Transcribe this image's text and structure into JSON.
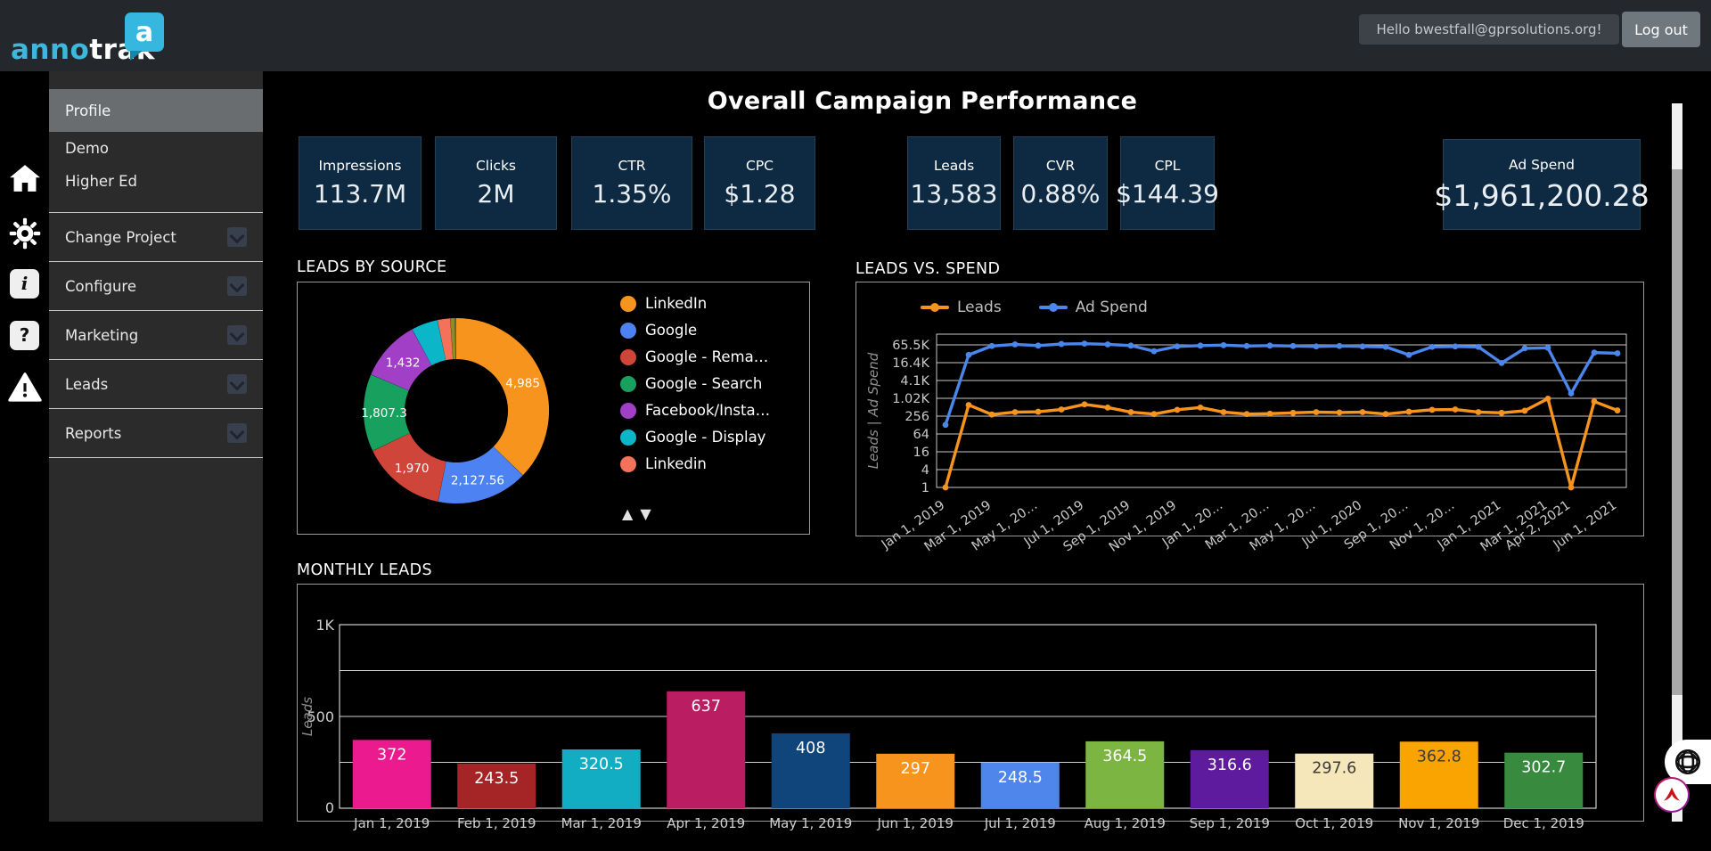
{
  "topbar": {
    "logo_anno": "anno",
    "logo_trak": "trak",
    "logo_badge": "a",
    "greeting": "Hello bwestfall@gprsolutions.org!",
    "logout_label": "Log out"
  },
  "sidebar": {
    "rail_icons": [
      "home",
      "gear",
      "info",
      "help",
      "warning"
    ],
    "items": [
      {
        "label": "Profile",
        "active": true,
        "chevron": false
      },
      {
        "label": "Demo",
        "active": false,
        "chevron": false
      },
      {
        "label": "Higher Ed",
        "active": false,
        "chevron": false
      },
      {
        "label": "Change Project",
        "active": false,
        "chevron": true
      },
      {
        "label": "Configure",
        "active": false,
        "chevron": true
      },
      {
        "label": "Marketing",
        "active": false,
        "chevron": true
      },
      {
        "label": "Leads",
        "active": false,
        "chevron": true
      },
      {
        "label": "Reports",
        "active": false,
        "chevron": true
      }
    ]
  },
  "page_title": "Overall Campaign Performance",
  "kpis": [
    {
      "label": "Impressions",
      "value": "113.7M"
    },
    {
      "label": "Clicks",
      "value": "2M"
    },
    {
      "label": "CTR",
      "value": "1.35%"
    },
    {
      "label": "CPC",
      "value": "$1.28"
    },
    {
      "label": "Leads",
      "value": "13,583"
    },
    {
      "label": "CVR",
      "value": "0.88%"
    },
    {
      "label": "CPL",
      "value": "$144.39"
    },
    {
      "label": "Ad Spend",
      "value": "$1,961,200.28"
    }
  ],
  "sections": {
    "leads_by_source": "LEADS BY SOURCE",
    "leads_vs_spend": "LEADS VS. SPEND",
    "monthly_leads": "MONTHLY LEADS"
  },
  "chart_data": [
    {
      "type": "pie",
      "title": "LEADS BY SOURCE",
      "donut": true,
      "slices": [
        {
          "label": "LinkedIn",
          "value": 4985,
          "display": "4,985",
          "color": "#f7941e"
        },
        {
          "label": "Google",
          "value": 2127.56,
          "display": "2,127.56",
          "color": "#4d82f3"
        },
        {
          "label": "Google - Rema…",
          "value": 1970,
          "display": "1,970",
          "color": "#cf4539"
        },
        {
          "label": "Google - Search",
          "value": 1807.3,
          "display": "1,807.3",
          "color": "#17a05e"
        },
        {
          "label": "Facebook/Insta…",
          "value": 1432,
          "display": "1,432",
          "color": "#a13fc7"
        },
        {
          "label": "Google - Display",
          "value": 620,
          "display": "",
          "color": "#0cb6c9"
        },
        {
          "label": "Linkedin",
          "value": 300,
          "display": "",
          "color": "#f4715a"
        },
        {
          "label": "",
          "value": 110,
          "display": "",
          "color": "#8f8d21"
        },
        {
          "label": "",
          "value": 25,
          "display": "",
          "color": "#4d82f3"
        }
      ],
      "legend": [
        "LinkedIn",
        "Google",
        "Google - Rema…",
        "Google - Search",
        "Facebook/Insta…",
        "Google - Display",
        "Linkedin"
      ],
      "legend_position": "right",
      "legend_scroll_arrows": [
        "▲",
        "▼"
      ]
    },
    {
      "type": "line",
      "title": "LEADS VS. SPEND",
      "ylabel": "Leads | Ad Spend",
      "y_scale": "log4",
      "y_ticks": [
        "65.5K",
        "16.4K",
        "4.1K",
        "1.02K",
        "256",
        "64",
        "16",
        "4",
        "1"
      ],
      "x_tick_labels": [
        "Jan 1, 2019",
        "Mar 1, 2019",
        "May 1, 20…",
        "Jul 1, 2019",
        "Sep 1, 2019",
        "Nov 1, 2019",
        "Jan 1, 20…",
        "Mar 1, 20…",
        "May 1, 20…",
        "Jul 1, 2020",
        "Sep 1, 20…",
        "Nov 1, 20…",
        "Jan 1, 2021",
        "Mar 1, 2021",
        "Apr 2, 2021",
        "Jun 1, 2021"
      ],
      "x_tick_idx": [
        0,
        2,
        4,
        6,
        8,
        10,
        12,
        14,
        16,
        18,
        20,
        22,
        24,
        26,
        27,
        29
      ],
      "grid": true,
      "legend_position": "top",
      "series": [
        {
          "name": "Leads",
          "color": "#f7941e",
          "values": [
            1,
            610,
            290,
            350,
            360,
            430,
            640,
            500,
            350,
            300,
            420,
            500,
            350,
            300,
            310,
            330,
            350,
            340,
            350,
            300,
            360,
            420,
            430,
            350,
            330,
            390,
            1000,
            1,
            800,
            400
          ]
        },
        {
          "name": "Ad Spend",
          "color": "#4a86ec",
          "values": [
            130,
            30000,
            60000,
            68000,
            62000,
            70000,
            72000,
            68000,
            62000,
            40000,
            58000,
            62000,
            64000,
            60000,
            62000,
            60000,
            58000,
            60000,
            58000,
            56000,
            30000,
            56000,
            58000,
            56000,
            16000,
            50000,
            52000,
            1500,
            36000,
            34000
          ]
        }
      ]
    },
    {
      "type": "bar",
      "title": "MONTHLY LEADS",
      "ylabel": "Leads",
      "y_ticks": [
        "1K",
        "500",
        "0"
      ],
      "ylim": [
        0,
        1000
      ],
      "grid": true,
      "categories": [
        "Jan 1, 2019",
        "Feb 1, 2019",
        "Mar 1, 2019",
        "Apr 1, 2019",
        "May 1, 2019",
        "Jun 1, 2019",
        "Jul 1, 2019",
        "Aug 1, 2019",
        "Sep 1, 2019",
        "Oct 1, 2019",
        "Nov 1, 2019",
        "Dec 1, 2019"
      ],
      "values": [
        372,
        243.5,
        320.5,
        637,
        408,
        297,
        248.5,
        364.5,
        316.6,
        297.6,
        362.8,
        302.7
      ],
      "displays": [
        "372",
        "243.5",
        "320.5",
        "637",
        "408",
        "297",
        "248.5",
        "364.5",
        "316.6",
        "297.6",
        "362.8",
        "302.7"
      ],
      "colors": [
        "#ec1a8f",
        "#a52426",
        "#12adc2",
        "#bb1d62",
        "#10457c",
        "#f7941e",
        "#4f86ec",
        "#7cb542",
        "#5f1b9e",
        "#f6e7bb",
        "#f9a400",
        "#378a3e"
      ],
      "dark_label": [
        false,
        false,
        false,
        false,
        false,
        false,
        false,
        false,
        false,
        true,
        true,
        false
      ]
    }
  ]
}
